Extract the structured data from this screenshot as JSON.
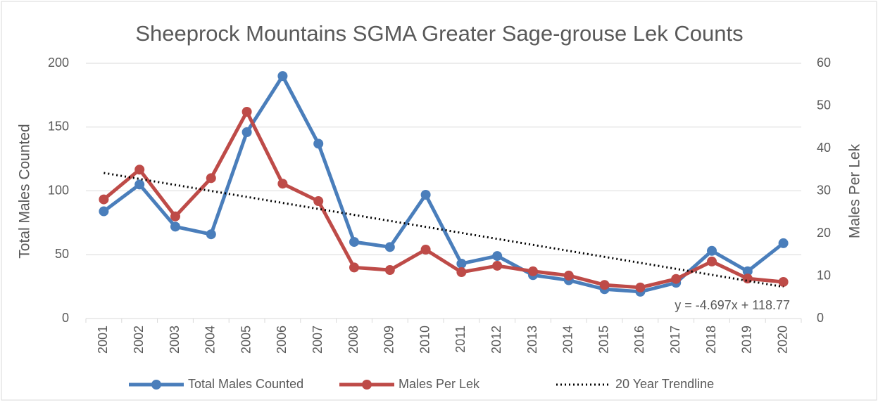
{
  "chart_data": {
    "type": "line",
    "title": "Sheeprock Mountains SGMA Greater Sage-grouse Lek Counts",
    "y_label": "Total Males Counted",
    "y2_label": "Males Per Lek",
    "annotation": "y = -4.697x + 118.77",
    "categories": [
      "2001",
      "2002",
      "2003",
      "2004",
      "2005",
      "2006",
      "2007",
      "2008",
      "2009",
      "2010",
      "2011",
      "2012",
      "2013",
      "2014",
      "2015",
      "2016",
      "2017",
      "2018",
      "2019",
      "2020"
    ],
    "series": [
      {
        "name": "Total Males Counted",
        "color": "#4a7ebb",
        "values": [
          84,
          105,
          72,
          66,
          146,
          190,
          137,
          60,
          56,
          97,
          43,
          49,
          34,
          30,
          23,
          21,
          28,
          53,
          37,
          59
        ]
      },
      {
        "name": "Males Per Lek",
        "color": "#be4b48",
        "axis": "y2",
        "values": [
          28,
          35,
          24,
          33,
          48.6,
          31.7,
          27.6,
          12,
          11.4,
          16.2,
          10.9,
          12.4,
          11.1,
          10.1,
          7.9,
          7.3,
          9.3,
          13.4,
          9.4,
          8.6
        ]
      },
      {
        "name": "20 Year Trendline",
        "color": "#000000",
        "dotted": true,
        "values": [
          114.07,
          109.38,
          104.68,
          99.98,
          95.29,
          90.59,
          85.89,
          81.19,
          76.5,
          71.8,
          67.1,
          62.41,
          57.71,
          53.01,
          48.32,
          43.62,
          38.92,
          34.22,
          29.53,
          24.83
        ]
      }
    ],
    "ylim": [
      0,
      200
    ],
    "yticks": [
      0,
      50,
      100,
      150,
      200
    ],
    "y2lim": [
      0,
      60
    ],
    "y2ticks": [
      0,
      10,
      20,
      30,
      40,
      50,
      60
    ],
    "grid": true,
    "legend": "bottom"
  }
}
